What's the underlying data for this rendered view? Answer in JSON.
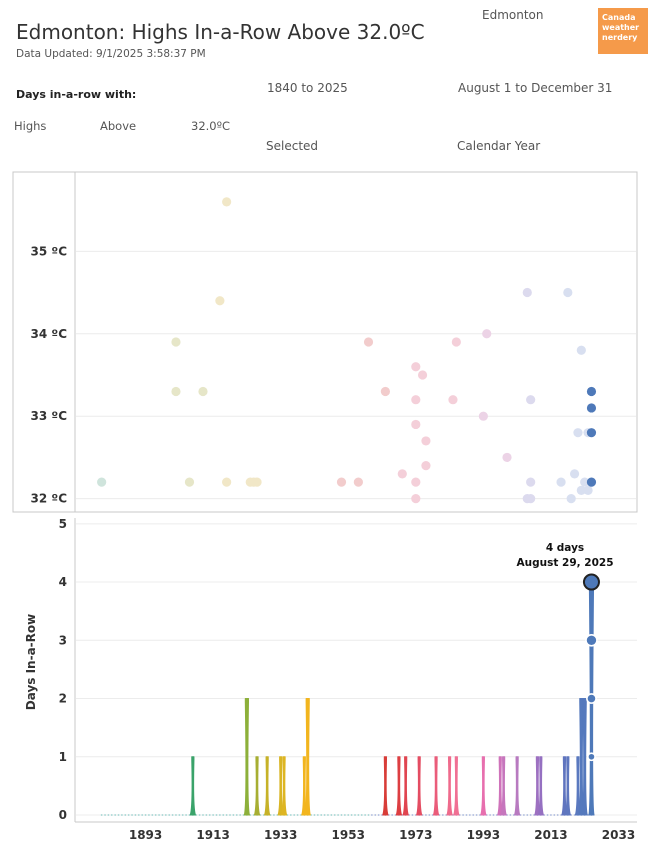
{
  "header": {
    "title": "Edmonton: Highs In-a-Row Above 32.0ºC",
    "updated": "Data Updated: 9/1/2025 3:58:37 PM",
    "city": "Edmonton",
    "logo_text": "Canada weather nerdery"
  },
  "filters": {
    "title": "Days in-a-row with:",
    "year_range": "1840 to 2025",
    "date_range": "August 1 to December 31",
    "measure": "Highs",
    "direction": "Above",
    "threshold": "32.0ºC",
    "selected": "Selected",
    "calendar": "Calendar Year"
  },
  "chart_data": [
    {
      "type": "scatter",
      "title": "",
      "xlabel": "",
      "ylabel": "",
      "xlim": [
        1873,
        2037
      ],
      "ylim": [
        31.85,
        35.95
      ],
      "yticks": [
        32,
        33,
        34,
        35
      ],
      "ytick_labels": [
        "32 ºC",
        "33 ºC",
        "34 ºC",
        "35 ºC"
      ],
      "points": [
        {
          "x": 1880,
          "y": 32.2,
          "color": "#cfe4dc"
        },
        {
          "x": 1902,
          "y": 33.9,
          "color": "#e6e6c8"
        },
        {
          "x": 1902,
          "y": 33.3,
          "color": "#e6e6c8"
        },
        {
          "x": 1906,
          "y": 32.2,
          "color": "#e6e6c8"
        },
        {
          "x": 1910,
          "y": 33.3,
          "color": "#e6e6c8"
        },
        {
          "x": 1915,
          "y": 34.4,
          "color": "#f1e7c7"
        },
        {
          "x": 1917,
          "y": 35.6,
          "color": "#f1e7c7"
        },
        {
          "x": 1917,
          "y": 32.2,
          "color": "#f1e7c7"
        },
        {
          "x": 1924,
          "y": 32.2,
          "color": "#f1e7c7"
        },
        {
          "x": 1925,
          "y": 32.2,
          "color": "#f1e7c7"
        },
        {
          "x": 1926,
          "y": 32.2,
          "color": "#f1e7c7"
        },
        {
          "x": 1951,
          "y": 32.2,
          "color": "#f2cccc"
        },
        {
          "x": 1956,
          "y": 32.2,
          "color": "#f2cccc"
        },
        {
          "x": 1959,
          "y": 33.9,
          "color": "#f2cccc"
        },
        {
          "x": 1964,
          "y": 33.3,
          "color": "#f2cccc"
        },
        {
          "x": 1969,
          "y": 32.3,
          "color": "#f4cfd9"
        },
        {
          "x": 1973,
          "y": 33.6,
          "color": "#f4cfd9"
        },
        {
          "x": 1973,
          "y": 33.2,
          "color": "#f4cfd9"
        },
        {
          "x": 1973,
          "y": 32.9,
          "color": "#f4cfd9"
        },
        {
          "x": 1973,
          "y": 32.2,
          "color": "#f4cfd9"
        },
        {
          "x": 1973,
          "y": 32.0,
          "color": "#f4cfd9"
        },
        {
          "x": 1975,
          "y": 33.5,
          "color": "#f4cfd9"
        },
        {
          "x": 1976,
          "y": 32.7,
          "color": "#f4cfd9"
        },
        {
          "x": 1976,
          "y": 32.4,
          "color": "#f4cfd9"
        },
        {
          "x": 1984,
          "y": 33.2,
          "color": "#f4cfd9"
        },
        {
          "x": 1985,
          "y": 33.9,
          "color": "#f4cfd9"
        },
        {
          "x": 1993,
          "y": 33.0,
          "color": "#ecd3e6"
        },
        {
          "x": 1994,
          "y": 34.0,
          "color": "#ecd3e6"
        },
        {
          "x": 2000,
          "y": 32.5,
          "color": "#ecd3e6"
        },
        {
          "x": 2006,
          "y": 34.5,
          "color": "#dcdaee"
        },
        {
          "x": 2006,
          "y": 32.0,
          "color": "#dcdaee"
        },
        {
          "x": 2007,
          "y": 33.2,
          "color": "#dcdaee"
        },
        {
          "x": 2007,
          "y": 32.2,
          "color": "#dcdaee"
        },
        {
          "x": 2007,
          "y": 32.0,
          "color": "#dcdaee"
        },
        {
          "x": 2016,
          "y": 32.2,
          "color": "#d8dff0"
        },
        {
          "x": 2018,
          "y": 34.5,
          "color": "#d8dff0"
        },
        {
          "x": 2019,
          "y": 32.0,
          "color": "#d8dff0"
        },
        {
          "x": 2020,
          "y": 32.3,
          "color": "#d8dff0"
        },
        {
          "x": 2021,
          "y": 32.8,
          "color": "#d8dff0"
        },
        {
          "x": 2022,
          "y": 33.8,
          "color": "#d8dff0"
        },
        {
          "x": 2022,
          "y": 32.1,
          "color": "#d8dff0"
        },
        {
          "x": 2023,
          "y": 32.2,
          "color": "#d8dff0"
        },
        {
          "x": 2024,
          "y": 32.1,
          "color": "#d8dff0"
        },
        {
          "x": 2024,
          "y": 32.8,
          "color": "#d8dff0"
        },
        {
          "x": 2025,
          "y": 33.3,
          "color": "#4e79b9"
        },
        {
          "x": 2025,
          "y": 33.1,
          "color": "#4e79b9"
        },
        {
          "x": 2025,
          "y": 32.8,
          "color": "#4e79b9"
        },
        {
          "x": 2025,
          "y": 32.2,
          "color": "#4e79b9"
        }
      ]
    },
    {
      "type": "line",
      "title": "",
      "xlabel": "",
      "ylabel": "Days In-a-Row",
      "xlim": [
        1873,
        2037
      ],
      "ylim": [
        -0.12,
        5.1
      ],
      "xticks": [
        1893,
        1913,
        1933,
        1953,
        1973,
        1993,
        2013,
        2033
      ],
      "yticks": [
        0,
        1,
        2,
        3,
        4,
        5
      ],
      "baseline_range": [
        1880,
        2025
      ],
      "spikes": [
        {
          "x": 1907,
          "y": 1,
          "color": "#3aa36a"
        },
        {
          "x": 1923,
          "y": 2,
          "color": "#8db03a"
        },
        {
          "x": 1926,
          "y": 1,
          "color": "#a7ae33"
        },
        {
          "x": 1929,
          "y": 1,
          "color": "#c6b228"
        },
        {
          "x": 1933,
          "y": 1,
          "color": "#d9b524"
        },
        {
          "x": 1934,
          "y": 1,
          "color": "#deb523"
        },
        {
          "x": 1940,
          "y": 1,
          "color": "#f2b51e"
        },
        {
          "x": 1941,
          "y": 2,
          "color": "#f2b51e"
        },
        {
          "x": 1964,
          "y": 1,
          "color": "#d83d38"
        },
        {
          "x": 1968,
          "y": 1,
          "color": "#dd3e42"
        },
        {
          "x": 1970,
          "y": 1,
          "color": "#e04550"
        },
        {
          "x": 1974,
          "y": 1,
          "color": "#e44d62"
        },
        {
          "x": 1979,
          "y": 1,
          "color": "#ea5c7a"
        },
        {
          "x": 1983,
          "y": 1,
          "color": "#ef6b8c"
        },
        {
          "x": 1985,
          "y": 1,
          "color": "#f07094"
        },
        {
          "x": 1993,
          "y": 1,
          "color": "#e76fae"
        },
        {
          "x": 1998,
          "y": 1,
          "color": "#cf73ba"
        },
        {
          "x": 1999,
          "y": 1,
          "color": "#c676bd"
        },
        {
          "x": 2003,
          "y": 1,
          "color": "#b87ac0"
        },
        {
          "x": 2009,
          "y": 1,
          "color": "#9d70c1"
        },
        {
          "x": 2010,
          "y": 1,
          "color": "#9570c1"
        },
        {
          "x": 2017,
          "y": 1,
          "color": "#6075bf"
        },
        {
          "x": 2018,
          "y": 1,
          "color": "#5e77bf"
        },
        {
          "x": 2021,
          "y": 1,
          "color": "#5a79bf"
        },
        {
          "x": 2022,
          "y": 2,
          "color": "#5579bd"
        },
        {
          "x": 2023,
          "y": 2,
          "color": "#5579bd"
        },
        {
          "x": 2025,
          "y": 4,
          "color": "#4e79b9"
        }
      ],
      "markers": [
        {
          "x": 2025,
          "y": 1
        },
        {
          "x": 2025,
          "y": 2
        },
        {
          "x": 2025,
          "y": 3
        }
      ],
      "highlight": {
        "x": 2025,
        "y": 4,
        "color": "#4e79b9"
      },
      "annotation": {
        "line1": "4 days",
        "line2": "August 29, 2025"
      }
    }
  ]
}
